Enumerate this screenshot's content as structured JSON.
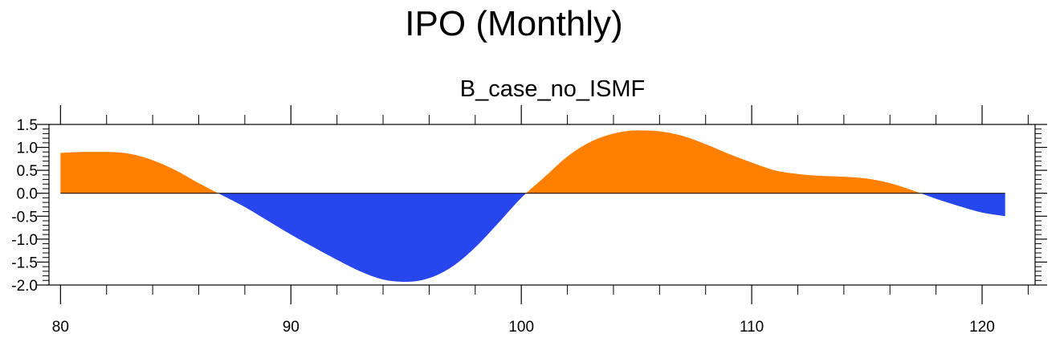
{
  "colors": {
    "positive": "#ff8000",
    "negative": "#2846ee",
    "axis": "#000000"
  },
  "chart_data": {
    "type": "area",
    "title": "IPO (Monthly)",
    "subtitle": "B_case_no_ISMF",
    "xlabel": "",
    "ylabel": "",
    "xlim": [
      79.5,
      122.3
    ],
    "ylim": [
      -2.0,
      1.5
    ],
    "xticks": [
      80,
      90,
      100,
      110,
      120
    ],
    "xtick_labels": [
      "80",
      "90",
      "100",
      "110",
      "120"
    ],
    "yticks": [
      -2.0,
      -1.5,
      -1.0,
      -0.5,
      0.0,
      0.5,
      1.0,
      1.5
    ],
    "ytick_labels": [
      "-2.0",
      "-1.5",
      "-1.0",
      "-0.5",
      "0.0",
      "0.5",
      "1.0",
      "1.5"
    ],
    "baseline": 0.0,
    "fill_above": "positive",
    "fill_below": "negative",
    "x": [
      80,
      81,
      82,
      83,
      84,
      85,
      86,
      87,
      88,
      89,
      90,
      91,
      92,
      93,
      94,
      95,
      96,
      97,
      98,
      99,
      100,
      101,
      102,
      103,
      104,
      105,
      106,
      107,
      108,
      109,
      110,
      111,
      112,
      113,
      114,
      115,
      116,
      117,
      118,
      119,
      120,
      121
    ],
    "y": [
      0.88,
      0.9,
      0.9,
      0.86,
      0.72,
      0.5,
      0.22,
      -0.04,
      -0.3,
      -0.6,
      -0.9,
      -1.18,
      -1.45,
      -1.7,
      -1.88,
      -1.93,
      -1.85,
      -1.6,
      -1.18,
      -0.65,
      -0.1,
      0.35,
      0.8,
      1.12,
      1.3,
      1.37,
      1.35,
      1.25,
      1.07,
      0.86,
      0.67,
      0.5,
      0.42,
      0.38,
      0.36,
      0.32,
      0.22,
      0.06,
      -0.12,
      -0.28,
      -0.42,
      -0.5
    ]
  }
}
